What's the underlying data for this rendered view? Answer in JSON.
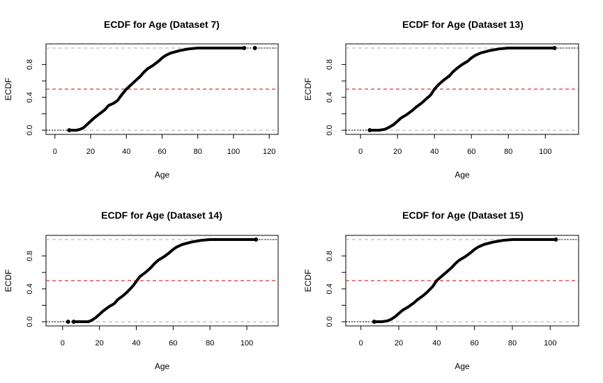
{
  "chart_data": [
    {
      "type": "line",
      "title": "ECDF for Age (Dataset 7)",
      "xlabel": "Age",
      "ylabel": "ECDF",
      "xlim": [
        -5,
        125
      ],
      "ylim": [
        0,
        1
      ],
      "xticks": [
        0,
        20,
        40,
        60,
        80,
        100,
        120
      ],
      "yticks": [
        0.0,
        0.4,
        0.8
      ],
      "ytick_labels": [
        "0.0",
        "0.4",
        "0.8"
      ],
      "reference_lines": [
        {
          "y": 0.0,
          "color": "#aaaaaa",
          "style": "dashed"
        },
        {
          "y": 0.5,
          "color": "#cc0000",
          "style": "dashed"
        },
        {
          "y": 1.0,
          "color": "#aaaaaa",
          "style": "dashed"
        }
      ],
      "series": [
        {
          "x": [
            8,
            12,
            14,
            16,
            18,
            20,
            22,
            25,
            28,
            30,
            33,
            35,
            37,
            40,
            42,
            45,
            48,
            50,
            52,
            55,
            58,
            60,
            62,
            65,
            70,
            75,
            80,
            83,
            90,
            100,
            106
          ],
          "y": [
            0.0,
            0.0,
            0.01,
            0.03,
            0.07,
            0.11,
            0.15,
            0.2,
            0.25,
            0.3,
            0.33,
            0.36,
            0.42,
            0.5,
            0.54,
            0.6,
            0.66,
            0.71,
            0.75,
            0.79,
            0.84,
            0.88,
            0.91,
            0.94,
            0.97,
            0.99,
            1.0,
            1.0,
            1.0,
            1.0,
            1.0
          ],
          "outlier": {
            "x": 112,
            "y": 1.0
          }
        }
      ]
    },
    {
      "type": "line",
      "title": "ECDF for Age (Dataset 13)",
      "xlabel": "Age",
      "ylabel": "ECDF",
      "xlim": [
        -8,
        118
      ],
      "ylim": [
        0,
        1
      ],
      "xticks": [
        0,
        20,
        40,
        60,
        80,
        100
      ],
      "yticks": [
        0.0,
        0.4,
        0.8
      ],
      "ytick_labels": [
        "0.0",
        "0.4",
        "0.8"
      ],
      "reference_lines": [
        {
          "y": 0.0,
          "color": "#aaaaaa",
          "style": "dashed"
        },
        {
          "y": 0.5,
          "color": "#cc0000",
          "style": "dashed"
        },
        {
          "y": 1.0,
          "color": "#aaaaaa",
          "style": "dashed"
        }
      ],
      "series": [
        {
          "x": [
            5,
            10,
            13,
            15,
            18,
            20,
            22,
            25,
            28,
            30,
            33,
            35,
            38,
            40,
            42,
            45,
            48,
            50,
            52,
            55,
            58,
            60,
            62,
            65,
            70,
            75,
            80,
            85,
            90,
            100,
            105
          ],
          "y": [
            0.0,
            0.0,
            0.01,
            0.03,
            0.07,
            0.11,
            0.15,
            0.19,
            0.24,
            0.28,
            0.33,
            0.37,
            0.43,
            0.5,
            0.55,
            0.61,
            0.66,
            0.71,
            0.75,
            0.8,
            0.84,
            0.88,
            0.91,
            0.94,
            0.97,
            0.99,
            1.0,
            1.0,
            1.0,
            1.0,
            1.0
          ]
        }
      ]
    },
    {
      "type": "line",
      "title": "ECDF for Age (Dataset 14)",
      "xlabel": "Age",
      "ylabel": "ECDF",
      "xlim": [
        -9,
        117
      ],
      "ylim": [
        0,
        1
      ],
      "xticks": [
        0,
        20,
        40,
        60,
        80,
        100
      ],
      "yticks": [
        0.0,
        0.4,
        0.8
      ],
      "ytick_labels": [
        "0.0",
        "0.4",
        "0.8"
      ],
      "reference_lines": [
        {
          "y": 0.0,
          "color": "#aaaaaa",
          "style": "dashed"
        },
        {
          "y": 0.5,
          "color": "#cc0000",
          "style": "dashed"
        },
        {
          "y": 1.0,
          "color": "#aaaaaa",
          "style": "dashed"
        }
      ],
      "series": [
        {
          "x": [
            6,
            10,
            14,
            16,
            18,
            20,
            22,
            25,
            28,
            30,
            33,
            35,
            38,
            40,
            42,
            45,
            48,
            50,
            52,
            55,
            58,
            60,
            62,
            65,
            70,
            75,
            80,
            85,
            90,
            100,
            105
          ],
          "y": [
            0.0,
            0.0,
            0.0,
            0.02,
            0.05,
            0.09,
            0.13,
            0.18,
            0.22,
            0.27,
            0.32,
            0.36,
            0.43,
            0.49,
            0.55,
            0.6,
            0.66,
            0.71,
            0.75,
            0.79,
            0.84,
            0.88,
            0.91,
            0.94,
            0.97,
            0.99,
            1.0,
            1.0,
            1.0,
            1.0,
            1.0
          ],
          "outlier": {
            "x": 3,
            "y": 0.0
          }
        }
      ]
    },
    {
      "type": "line",
      "title": "ECDF for Age (Dataset 15)",
      "xlabel": "Age",
      "ylabel": "ECDF",
      "xlim": [
        -8,
        115
      ],
      "ylim": [
        0,
        1
      ],
      "xticks": [
        0,
        20,
        40,
        60,
        80,
        100
      ],
      "yticks": [
        0.0,
        0.4,
        0.8
      ],
      "ytick_labels": [
        "0.0",
        "0.4",
        "0.8"
      ],
      "reference_lines": [
        {
          "y": 0.0,
          "color": "#aaaaaa",
          "style": "dashed"
        },
        {
          "y": 0.5,
          "color": "#cc0000",
          "style": "dashed"
        },
        {
          "y": 1.0,
          "color": "#aaaaaa",
          "style": "dashed"
        }
      ],
      "series": [
        {
          "x": [
            7,
            11,
            14,
            16,
            18,
            20,
            22,
            25,
            28,
            30,
            33,
            35,
            38,
            40,
            42,
            45,
            48,
            50,
            52,
            55,
            58,
            60,
            62,
            65,
            70,
            75,
            80,
            85,
            90,
            100,
            103
          ],
          "y": [
            0.0,
            0.0,
            0.01,
            0.03,
            0.06,
            0.1,
            0.14,
            0.18,
            0.23,
            0.27,
            0.32,
            0.36,
            0.43,
            0.5,
            0.54,
            0.6,
            0.66,
            0.71,
            0.75,
            0.79,
            0.84,
            0.88,
            0.91,
            0.94,
            0.97,
            0.99,
            1.0,
            1.0,
            1.0,
            1.0,
            1.0
          ]
        }
      ]
    }
  ]
}
